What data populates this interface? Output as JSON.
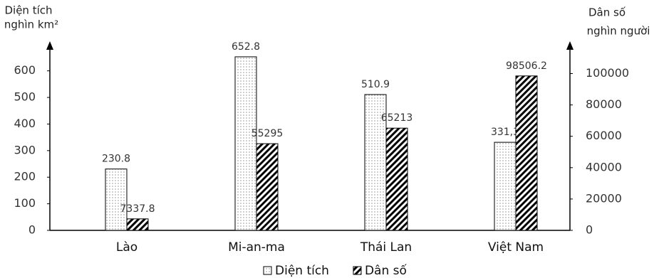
{
  "chart_data": {
    "type": "bar",
    "ylabel": [
      "Diện tích",
      "nghìn km²"
    ],
    "y2label": [
      "Dân số",
      "nghìn người"
    ],
    "categories": [
      "Lào",
      "Mi-an-ma",
      "Thái Lan",
      "Việt Nam"
    ],
    "series": [
      {
        "name": "Diện tích",
        "color": "#000000",
        "pattern": "dots",
        "values": [
          230.8,
          652.8,
          510.9,
          331.3
        ],
        "value_labels": [
          "230.8",
          "652.8",
          "510.9",
          "331,3"
        ]
      },
      {
        "name": "Dân số",
        "color": "#000000",
        "pattern": "hatch",
        "axis": "y2",
        "values": [
          7337.8,
          55295,
          65213,
          98506.2
        ]
      }
    ],
    "ylim": [
      0,
      690
    ],
    "yticks": [
      0,
      100,
      200,
      300,
      400,
      500,
      600
    ],
    "y2lim": [
      0,
      117000
    ],
    "y2ticks": [
      0,
      20000,
      40000,
      60000,
      80000,
      100000
    ],
    "legend": "bottom"
  }
}
